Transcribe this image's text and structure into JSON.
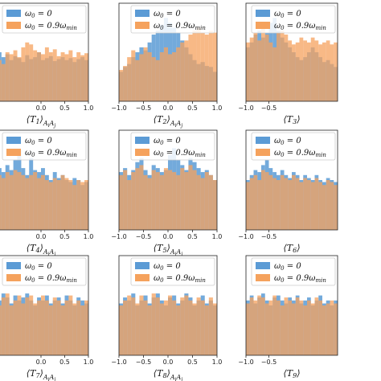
{
  "chart_data": [
    {
      "type": "bar",
      "xlabel": "⟨T1⟩AiAj",
      "xlim": [
        -1.0,
        1.0
      ],
      "x_ticks": [
        "0.0",
        "0.5",
        "1.0"
      ],
      "legend": {
        "placement": "top-right",
        "entries": [
          "ω0 = 0",
          "ω0 = 0.9ωmin"
        ]
      },
      "series": [
        {
          "name": "ω0 = 0",
          "color": "#5b9bd5",
          "values": [
            0.55,
            0.5,
            0.45,
            0.48,
            0.42,
            0.46,
            0.44,
            0.4,
            0.47,
            0.43,
            0.45,
            0.5,
            0.42,
            0.44,
            0.46,
            0.41,
            0.43,
            0.45,
            0.42,
            0.44,
            0.4,
            0.43,
            0.45,
            0.42
          ]
        },
        {
          "name": "ω0 = 0.9ωmin",
          "color": "#f5a25d",
          "values": [
            0.4,
            0.42,
            0.38,
            0.5,
            0.48,
            0.52,
            0.45,
            0.55,
            0.6,
            0.58,
            0.52,
            0.5,
            0.48,
            0.55,
            0.5,
            0.53,
            0.46,
            0.5,
            0.48,
            0.52,
            0.45,
            0.5,
            0.47,
            0.49
          ]
        }
      ]
    },
    {
      "type": "bar",
      "xlabel": "⟨T2⟩AiAj",
      "xlim": [
        -1.0,
        1.0
      ],
      "x_ticks": [
        "−1.0",
        "−0.5",
        "0.0",
        "0.5",
        "1.0"
      ],
      "legend": {
        "placement": "top-right",
        "entries": [
          "ω0 = 0",
          "ω0 = 0.9ωmin"
        ]
      },
      "series": [
        {
          "name": "ω0 = 0",
          "color": "#5b9bd5",
          "values": [
            0.3,
            0.35,
            0.38,
            0.45,
            0.5,
            0.55,
            0.52,
            0.6,
            0.68,
            0.72,
            0.78,
            0.85,
            0.8,
            0.75,
            0.7,
            0.62,
            0.55,
            0.48,
            0.42,
            0.38,
            0.4,
            0.36,
            0.35,
            0.3
          ]
        },
        {
          "name": "ω0 = 0.9ωmin",
          "color": "#f5a25d",
          "values": [
            0.32,
            0.36,
            0.45,
            0.52,
            0.42,
            0.48,
            0.55,
            0.5,
            0.45,
            0.42,
            0.5,
            0.55,
            0.48,
            0.5,
            0.55,
            0.6,
            0.62,
            0.68,
            0.72,
            0.75,
            0.7,
            0.68,
            0.72,
            0.7
          ]
        }
      ]
    },
    {
      "type": "bar",
      "xlabel": "⟨T3⟩",
      "xlim": [
        -1.0,
        1.0
      ],
      "x_ticks": [
        "−1.0",
        "−0.5"
      ],
      "legend": {
        "placement": "top-right",
        "entries": [
          "ω0 = 0",
          "ω0 = 0.9ωmin"
        ]
      },
      "series": [
        {
          "name": "ω0 = 0",
          "color": "#5b9bd5",
          "values": [
            0.55,
            0.6,
            0.68,
            0.72,
            0.65,
            0.7,
            0.8,
            0.85,
            0.72,
            0.65,
            0.6,
            0.55,
            0.5,
            0.45,
            0.42,
            0.45,
            0.5,
            0.55,
            0.5,
            0.45,
            0.4,
            0.42,
            0.38,
            0.35
          ]
        },
        {
          "name": "ω0 = 0.9ωmin",
          "color": "#f5a25d",
          "values": [
            0.6,
            0.65,
            0.7,
            0.62,
            0.75,
            0.68,
            0.6,
            0.55,
            0.7,
            0.72,
            0.68,
            0.62,
            0.58,
            0.6,
            0.65,
            0.62,
            0.6,
            0.65,
            0.62,
            0.58,
            0.6,
            0.62,
            0.58,
            0.6
          ]
        }
      ]
    },
    {
      "type": "bar",
      "xlabel": "⟨T4⟩AiAj",
      "xlim": [
        -1.0,
        1.0
      ],
      "x_ticks": [
        "0.0",
        "0.5",
        "1.0"
      ],
      "legend": {
        "placement": "top-right",
        "entries": [
          "ω0 = 0",
          "ω0 = 0.9ωmin"
        ]
      },
      "series": [
        {
          "name": "ω0 = 0",
          "color": "#5b9bd5",
          "values": [
            0.55,
            0.62,
            0.58,
            0.65,
            0.6,
            0.7,
            0.8,
            0.62,
            0.55,
            0.72,
            0.6,
            0.58,
            0.62,
            0.55,
            0.5,
            0.58,
            0.52,
            0.55,
            0.5,
            0.48,
            0.52,
            0.5,
            0.45,
            0.48
          ]
        },
        {
          "name": "ω0 = 0.9ωmin",
          "color": "#f5a25d",
          "values": [
            0.5,
            0.55,
            0.52,
            0.58,
            0.55,
            0.6,
            0.58,
            0.55,
            0.52,
            0.55,
            0.58,
            0.52,
            0.55,
            0.5,
            0.48,
            0.52,
            0.5,
            0.55,
            0.52,
            0.5,
            0.45,
            0.5,
            0.48,
            0.5
          ]
        }
      ]
    },
    {
      "type": "bar",
      "xlabel": "⟨T5⟩AiAj",
      "xlim": [
        -1.0,
        1.0
      ],
      "x_ticks": [
        "−1.0",
        "−0.5",
        "0.0",
        "0.5",
        "1.0"
      ],
      "legend": {
        "placement": "top-right",
        "entries": [
          "ω0 = 0",
          "ω0 = 0.9ωmin"
        ]
      },
      "series": [
        {
          "name": "ω0 = 0",
          "color": "#5b9bd5",
          "values": [
            0.58,
            0.62,
            0.55,
            0.6,
            0.68,
            0.72,
            0.6,
            0.55,
            0.65,
            0.62,
            0.58,
            0.6,
            0.75,
            0.82,
            0.7,
            0.65,
            0.6,
            0.72,
            0.68,
            0.62,
            0.58,
            0.6,
            0.55,
            0.5
          ]
        },
        {
          "name": "ω0 = 0.9ωmin",
          "color": "#f5a25d",
          "values": [
            0.55,
            0.6,
            0.5,
            0.58,
            0.62,
            0.65,
            0.55,
            0.52,
            0.6,
            0.58,
            0.55,
            0.62,
            0.6,
            0.58,
            0.55,
            0.62,
            0.58,
            0.65,
            0.6,
            0.55,
            0.52,
            0.58,
            0.55,
            0.5
          ]
        }
      ]
    },
    {
      "type": "bar",
      "xlabel": "⟨T6⟩",
      "xlim": [
        -1.0,
        1.0
      ],
      "x_ticks": [
        "−1.0",
        "−0.5"
      ],
      "legend": {
        "placement": "top-right",
        "entries": [
          "ω0 = 0",
          "ω0 = 0.9ωmin"
        ]
      },
      "series": [
        {
          "name": "ω0 = 0",
          "color": "#5b9bd5",
          "values": [
            0.5,
            0.55,
            0.6,
            0.58,
            0.65,
            0.7,
            0.62,
            0.58,
            0.55,
            0.6,
            0.55,
            0.52,
            0.58,
            0.55,
            0.5,
            0.55,
            0.52,
            0.5,
            0.55,
            0.5,
            0.48,
            0.52,
            0.5,
            0.48
          ]
        },
        {
          "name": "ω0 = 0.9ωmin",
          "color": "#f5a25d",
          "values": [
            0.48,
            0.52,
            0.55,
            0.5,
            0.6,
            0.58,
            0.55,
            0.52,
            0.5,
            0.55,
            0.52,
            0.5,
            0.55,
            0.52,
            0.48,
            0.52,
            0.5,
            0.48,
            0.52,
            0.48,
            0.45,
            0.5,
            0.48,
            0.45
          ]
        }
      ]
    },
    {
      "type": "bar",
      "xlabel": "⟨T7⟩AiAj",
      "xlim": [
        -1.0,
        1.0
      ],
      "x_ticks": [
        "0.0",
        "0.5",
        "1.0"
      ],
      "legend": {
        "placement": "top-right",
        "entries": [
          "ω0 = 0",
          "ω0 = 0.9ωmin"
        ]
      },
      "series": [
        {
          "name": "ω0 = 0",
          "color": "#5b9bd5",
          "values": [
            0.6,
            0.55,
            0.62,
            0.58,
            0.52,
            0.6,
            0.55,
            0.58,
            0.62,
            0.55,
            0.5,
            0.58,
            0.55,
            0.6,
            0.52,
            0.55,
            0.58,
            0.52,
            0.6,
            0.55,
            0.5,
            0.58,
            0.55,
            0.52
          ]
        },
        {
          "name": "ω0 = 0.9ωmin",
          "color": "#f5a25d",
          "values": [
            0.55,
            0.5,
            0.58,
            0.62,
            0.5,
            0.55,
            0.6,
            0.52,
            0.58,
            0.6,
            0.52,
            0.55,
            0.6,
            0.55,
            0.5,
            0.58,
            0.55,
            0.5,
            0.55,
            0.6,
            0.52,
            0.55,
            0.5,
            0.55
          ]
        }
      ]
    },
    {
      "type": "bar",
      "xlabel": "⟨T8⟩AiAj",
      "xlim": [
        -1.0,
        1.0
      ],
      "x_ticks": [
        "−1.0",
        "−0.5",
        "0.0",
        "0.5",
        "1.0"
      ],
      "legend": {
        "placement": "top-right",
        "entries": [
          "ω0 = 0",
          "ω0 = 0.9ωmin"
        ]
      },
      "series": [
        {
          "name": "ω0 = 0",
          "color": "#5b9bd5",
          "values": [
            0.52,
            0.58,
            0.55,
            0.62,
            0.5,
            0.55,
            0.6,
            0.52,
            0.58,
            0.62,
            0.55,
            0.5,
            0.58,
            0.6,
            0.52,
            0.55,
            0.62,
            0.58,
            0.5,
            0.55,
            0.6,
            0.52,
            0.55,
            0.5
          ]
        },
        {
          "name": "ω0 = 0.9ωmin",
          "color": "#f5a25d",
          "values": [
            0.5,
            0.55,
            0.6,
            0.58,
            0.52,
            0.6,
            0.55,
            0.5,
            0.62,
            0.58,
            0.52,
            0.55,
            0.6,
            0.55,
            0.5,
            0.58,
            0.6,
            0.55,
            0.52,
            0.58,
            0.55,
            0.5,
            0.58,
            0.52
          ]
        }
      ]
    },
    {
      "type": "bar",
      "xlabel": "⟨T9⟩",
      "xlim": [
        -1.0,
        1.0
      ],
      "x_ticks": [
        "−1.0",
        "−0.5"
      ],
      "legend": {
        "placement": "top-right",
        "entries": [
          "ω0 = 0",
          "ω0 = 0.9ωmin"
        ]
      },
      "series": [
        {
          "name": "ω0 = 0",
          "color": "#5b9bd5",
          "values": [
            0.55,
            0.6,
            0.52,
            0.58,
            0.62,
            0.55,
            0.5,
            0.58,
            0.6,
            0.55,
            0.52,
            0.58,
            0.55,
            0.6,
            0.52,
            0.55,
            0.58,
            0.5,
            0.55,
            0.6,
            0.52,
            0.55,
            0.5,
            0.55
          ]
        },
        {
          "name": "ω0 = 0.9ωmin",
          "color": "#f5a25d",
          "values": [
            0.52,
            0.58,
            0.55,
            0.6,
            0.58,
            0.52,
            0.55,
            0.6,
            0.55,
            0.5,
            0.58,
            0.55,
            0.52,
            0.58,
            0.55,
            0.5,
            0.55,
            0.52,
            0.58,
            0.55,
            0.5,
            0.52,
            0.55,
            0.52
          ]
        }
      ]
    }
  ]
}
